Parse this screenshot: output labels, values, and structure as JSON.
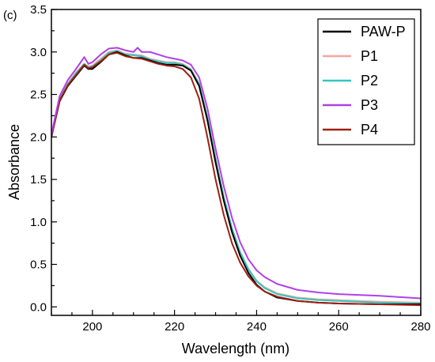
{
  "panel_label": "(c)",
  "chart_data": {
    "type": "line",
    "xlabel": "Wavelength (nm)",
    "ylabel": "Absorbance",
    "xlim": [
      190,
      280
    ],
    "ylim": [
      -0.1,
      3.5
    ],
    "xticks": [
      200,
      220,
      240,
      260,
      280
    ],
    "yticks": [
      0.0,
      0.5,
      1.0,
      1.5,
      2.0,
      2.5,
      3.0,
      3.5
    ],
    "ytick_labels": [
      "0.0",
      "0.5",
      "1.0",
      "1.5",
      "2.0",
      "2.5",
      "3.0",
      "3.5"
    ],
    "legend_position": "top-right",
    "grid": false,
    "series": [
      {
        "name": "PAW-P",
        "color": "#000000",
        "x": [
          190,
          192,
          194,
          196,
          198,
          199,
          200,
          202,
          204,
          206,
          208,
          210,
          212,
          214,
          216,
          218,
          220,
          222,
          224,
          226,
          228,
          230,
          232,
          234,
          236,
          238,
          240,
          242,
          245,
          250,
          255,
          260,
          270,
          280
        ],
        "y": [
          2.0,
          2.42,
          2.6,
          2.72,
          2.84,
          2.8,
          2.8,
          2.88,
          2.97,
          3.0,
          2.96,
          2.93,
          2.93,
          2.9,
          2.87,
          2.85,
          2.85,
          2.84,
          2.78,
          2.6,
          2.2,
          1.7,
          1.25,
          0.88,
          0.6,
          0.4,
          0.26,
          0.18,
          0.11,
          0.07,
          0.05,
          0.04,
          0.03,
          0.03
        ]
      },
      {
        "name": "P1",
        "color": "#f0a8a0",
        "x": [
          190,
          192,
          194,
          196,
          198,
          199,
          200,
          202,
          204,
          206,
          208,
          210,
          212,
          214,
          216,
          218,
          220,
          222,
          224,
          226,
          228,
          230,
          232,
          234,
          236,
          238,
          240,
          242,
          245,
          250,
          255,
          260,
          270,
          280
        ],
        "y": [
          2.02,
          2.45,
          2.63,
          2.76,
          2.86,
          2.83,
          2.84,
          2.92,
          3.0,
          3.02,
          2.98,
          2.97,
          2.96,
          2.92,
          2.9,
          2.88,
          2.88,
          2.86,
          2.8,
          2.63,
          2.24,
          1.75,
          1.3,
          0.93,
          0.65,
          0.45,
          0.31,
          0.23,
          0.16,
          0.11,
          0.09,
          0.08,
          0.06,
          0.05
        ]
      },
      {
        "name": "P2",
        "color": "#30c8c0",
        "x": [
          190,
          192,
          194,
          196,
          198,
          199,
          200,
          202,
          204,
          206,
          208,
          210,
          212,
          214,
          216,
          218,
          220,
          222,
          224,
          226,
          228,
          230,
          232,
          234,
          236,
          238,
          240,
          242,
          245,
          250,
          255,
          260,
          270,
          280
        ],
        "y": [
          2.01,
          2.44,
          2.62,
          2.75,
          2.86,
          2.82,
          2.83,
          2.9,
          2.99,
          3.01,
          2.97,
          2.96,
          2.95,
          2.91,
          2.89,
          2.87,
          2.87,
          2.85,
          2.79,
          2.62,
          2.23,
          1.74,
          1.29,
          0.92,
          0.64,
          0.44,
          0.3,
          0.22,
          0.15,
          0.1,
          0.08,
          0.07,
          0.05,
          0.04
        ]
      },
      {
        "name": "P3",
        "color": "#b040e8",
        "x": [
          190,
          192,
          194,
          196,
          198,
          199,
          200,
          202,
          204,
          206,
          208,
          210,
          211,
          212,
          214,
          216,
          218,
          220,
          222,
          224,
          226,
          228,
          230,
          232,
          234,
          236,
          238,
          240,
          242,
          245,
          250,
          255,
          260,
          270,
          280
        ],
        "y": [
          2.03,
          2.48,
          2.67,
          2.8,
          2.94,
          2.86,
          2.88,
          2.97,
          3.04,
          3.05,
          3.02,
          3.0,
          3.05,
          3.0,
          3.0,
          2.97,
          2.94,
          2.92,
          2.9,
          2.85,
          2.7,
          2.34,
          1.86,
          1.42,
          1.05,
          0.76,
          0.56,
          0.43,
          0.35,
          0.27,
          0.2,
          0.17,
          0.15,
          0.13,
          0.1
        ]
      },
      {
        "name": "P4",
        "color": "#a02010",
        "x": [
          190,
          192,
          194,
          196,
          198,
          199,
          200,
          202,
          204,
          206,
          208,
          210,
          212,
          214,
          216,
          218,
          220,
          222,
          224,
          226,
          228,
          230,
          232,
          234,
          236,
          238,
          240,
          242,
          245,
          250,
          255,
          260,
          270,
          280
        ],
        "y": [
          2.0,
          2.43,
          2.61,
          2.73,
          2.85,
          2.81,
          2.82,
          2.89,
          2.97,
          2.99,
          2.95,
          2.93,
          2.92,
          2.89,
          2.86,
          2.84,
          2.83,
          2.8,
          2.7,
          2.45,
          2.0,
          1.5,
          1.08,
          0.75,
          0.52,
          0.36,
          0.25,
          0.18,
          0.12,
          0.07,
          0.05,
          0.04,
          0.03,
          0.02
        ]
      }
    ]
  }
}
